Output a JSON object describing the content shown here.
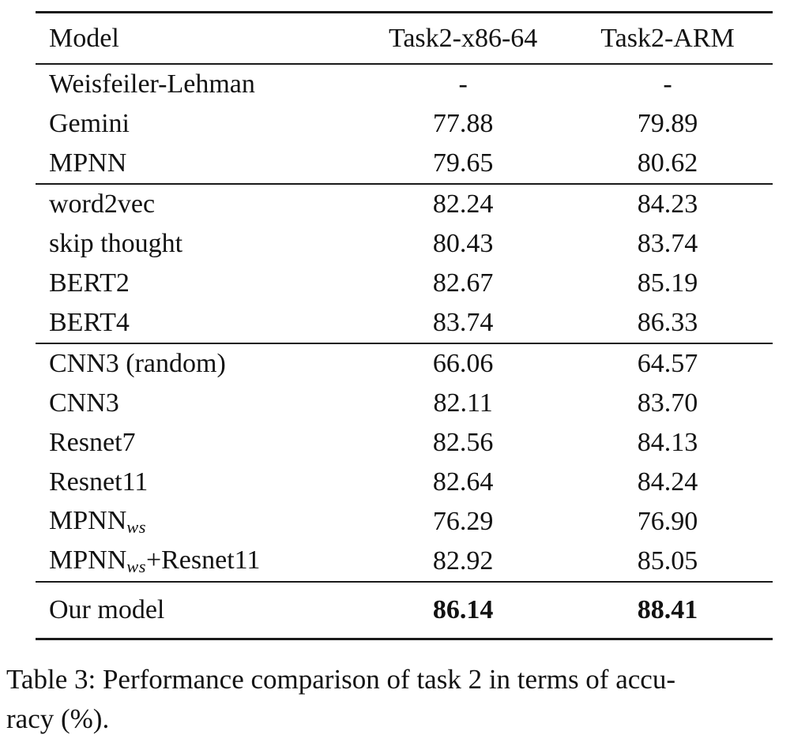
{
  "colors": {
    "background": "#ffffff",
    "text": "#121212",
    "rule": "#1a1a1a"
  },
  "table": {
    "columns": [
      "Model",
      "Task2-x86-64",
      "Task2-ARM"
    ],
    "rows": [
      {
        "name": "Weisfeiler-Lehman",
        "sub": "",
        "suffix": "",
        "x86": "-",
        "arm": "-"
      },
      {
        "name": "Gemini",
        "sub": "",
        "suffix": "",
        "x86": "77.88",
        "arm": "79.89"
      },
      {
        "name": "MPNN",
        "sub": "",
        "suffix": "",
        "x86": "79.65",
        "arm": "80.62"
      },
      {
        "name": "word2vec",
        "sub": "",
        "suffix": "",
        "x86": "82.24",
        "arm": "84.23"
      },
      {
        "name": "skip thought",
        "sub": "",
        "suffix": "",
        "x86": "80.43",
        "arm": "83.74"
      },
      {
        "name": "BERT2",
        "sub": "",
        "suffix": "",
        "x86": "82.67",
        "arm": "85.19"
      },
      {
        "name": "BERT4",
        "sub": "",
        "suffix": "",
        "x86": "83.74",
        "arm": "86.33"
      },
      {
        "name": "CNN3 (random)",
        "sub": "",
        "suffix": "",
        "x86": "66.06",
        "arm": "64.57"
      },
      {
        "name": "CNN3",
        "sub": "",
        "suffix": "",
        "x86": "82.11",
        "arm": "83.70"
      },
      {
        "name": "Resnet7",
        "sub": "",
        "suffix": "",
        "x86": "82.56",
        "arm": "84.13"
      },
      {
        "name": "Resnet11",
        "sub": "",
        "suffix": "",
        "x86": "82.64",
        "arm": "84.24"
      },
      {
        "name": "MPNN",
        "sub": "ws",
        "suffix": "",
        "x86": "76.29",
        "arm": "76.90"
      },
      {
        "name": "MPNN",
        "sub": "ws",
        "suffix": "+Resnet11",
        "x86": "82.92",
        "arm": "85.05"
      },
      {
        "name": "Our model",
        "sub": "",
        "suffix": "",
        "x86": "86.14",
        "arm": "88.41"
      }
    ]
  },
  "caption": {
    "line1": "Table 3: Performance comparison of task 2 in terms of accu-",
    "line2": "racy (%)."
  }
}
